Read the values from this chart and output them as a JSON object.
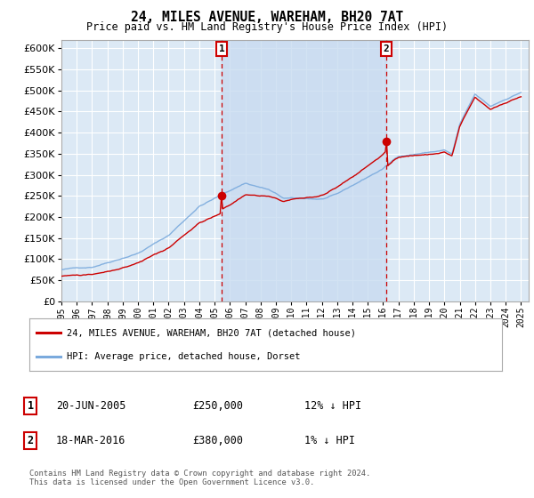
{
  "title": "24, MILES AVENUE, WAREHAM, BH20 7AT",
  "subtitle": "Price paid vs. HM Land Registry's House Price Index (HPI)",
  "ylim": [
    0,
    620000
  ],
  "xlim_start": 1995.0,
  "xlim_end": 2025.5,
  "plot_bg": "#dce9f5",
  "shade_color": "#c8dbf0",
  "grid_color": "#ffffff",
  "sale1_x": 2005.47,
  "sale1_y": 250000,
  "sale1_label": "1",
  "sale1_date": "20-JUN-2005",
  "sale1_price": "£250,000",
  "sale1_hpi": "12% ↓ HPI",
  "sale2_x": 2016.21,
  "sale2_y": 380000,
  "sale2_label": "2",
  "sale2_date": "18-MAR-2016",
  "sale2_price": "£380,000",
  "sale2_hpi": "1% ↓ HPI",
  "legend_line1": "24, MILES AVENUE, WAREHAM, BH20 7AT (detached house)",
  "legend_line2": "HPI: Average price, detached house, Dorset",
  "footer": "Contains HM Land Registry data © Crown copyright and database right 2024.\nThis data is licensed under the Open Government Licence v3.0.",
  "red_line_color": "#cc0000",
  "blue_line_color": "#7aaadd",
  "xtick_years": [
    1995,
    1996,
    1997,
    1998,
    1999,
    2000,
    2001,
    2002,
    2003,
    2004,
    2005,
    2006,
    2007,
    2008,
    2009,
    2010,
    2011,
    2012,
    2013,
    2014,
    2015,
    2016,
    2017,
    2018,
    2019,
    2020,
    2021,
    2022,
    2023,
    2024,
    2025
  ]
}
